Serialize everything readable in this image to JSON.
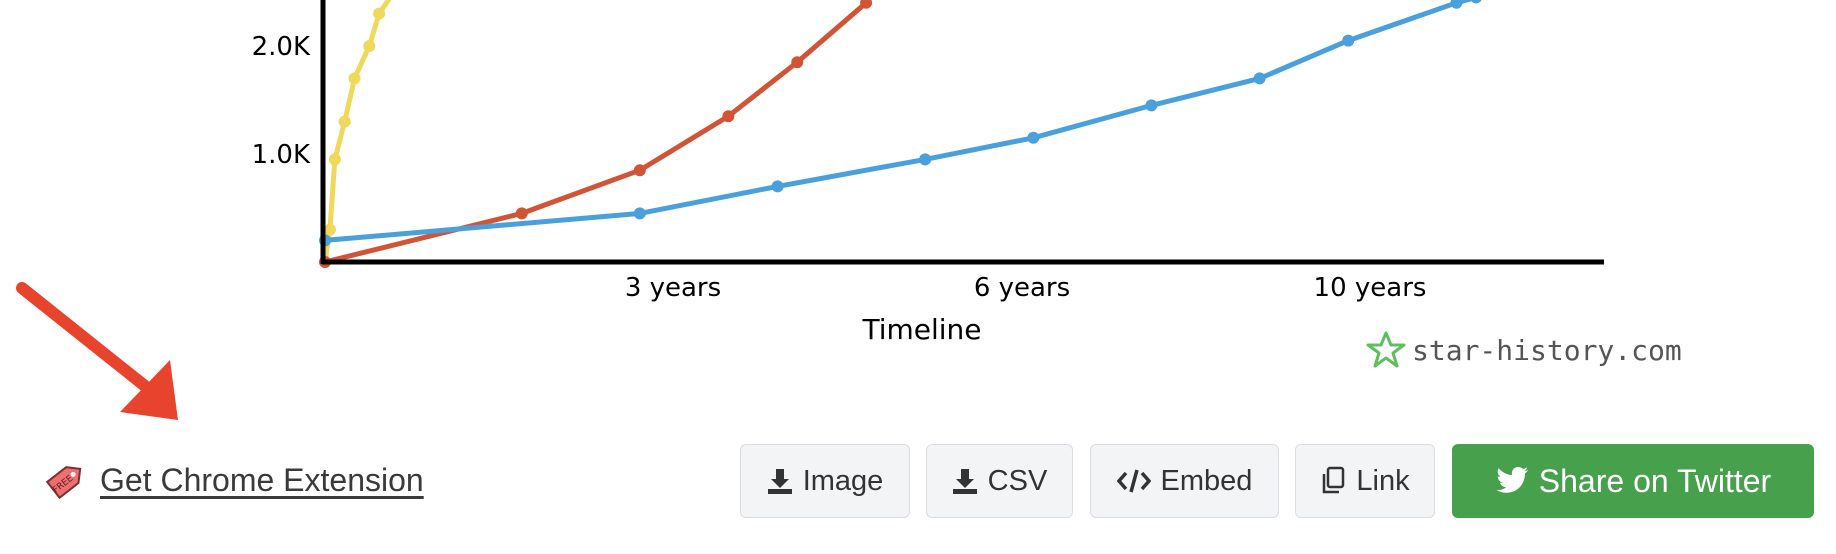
{
  "chart_data": {
    "type": "line",
    "xlabel": "Timeline",
    "x_ticks": [
      "3 years",
      "6 years",
      "10 years"
    ],
    "y_ticks": [
      "1.0K",
      "2.0K"
    ],
    "ylim": [
      0,
      2500
    ],
    "xlim": [
      0,
      13
    ],
    "series": [
      {
        "color": "#f0d85a",
        "x": [
          0,
          0.05,
          0.1,
          0.2,
          0.3,
          0.45,
          0.55,
          0.7
        ],
        "y": [
          0,
          300,
          950,
          1300,
          1700,
          2000,
          2300,
          2500
        ]
      },
      {
        "color": "#d25437",
        "x": [
          0,
          2,
          3.2,
          4.1,
          4.8,
          5.5
        ],
        "y": [
          0,
          450,
          850,
          1350,
          1850,
          2400
        ]
      },
      {
        "color": "#4aa0dc",
        "x": [
          0,
          3.2,
          4.6,
          6.1,
          7.2,
          8.4,
          9.5,
          10.4,
          11.5,
          11.7
        ],
        "y": [
          200,
          450,
          700,
          950,
          1150,
          1450,
          1700,
          2050,
          2400,
          2450
        ]
      }
    ]
  },
  "brand": {
    "text": "star-history.com",
    "color": "#5fbf5f"
  },
  "toolbar": {
    "extension_label": "Get Chrome Extension",
    "free_tag": "FREE",
    "image_label": "Image",
    "csv_label": "CSV",
    "embed_label": "Embed",
    "link_label": "Link",
    "twitter_label": "Share on Twitter"
  },
  "annotation": {
    "arrow_color": "#e8432c"
  }
}
